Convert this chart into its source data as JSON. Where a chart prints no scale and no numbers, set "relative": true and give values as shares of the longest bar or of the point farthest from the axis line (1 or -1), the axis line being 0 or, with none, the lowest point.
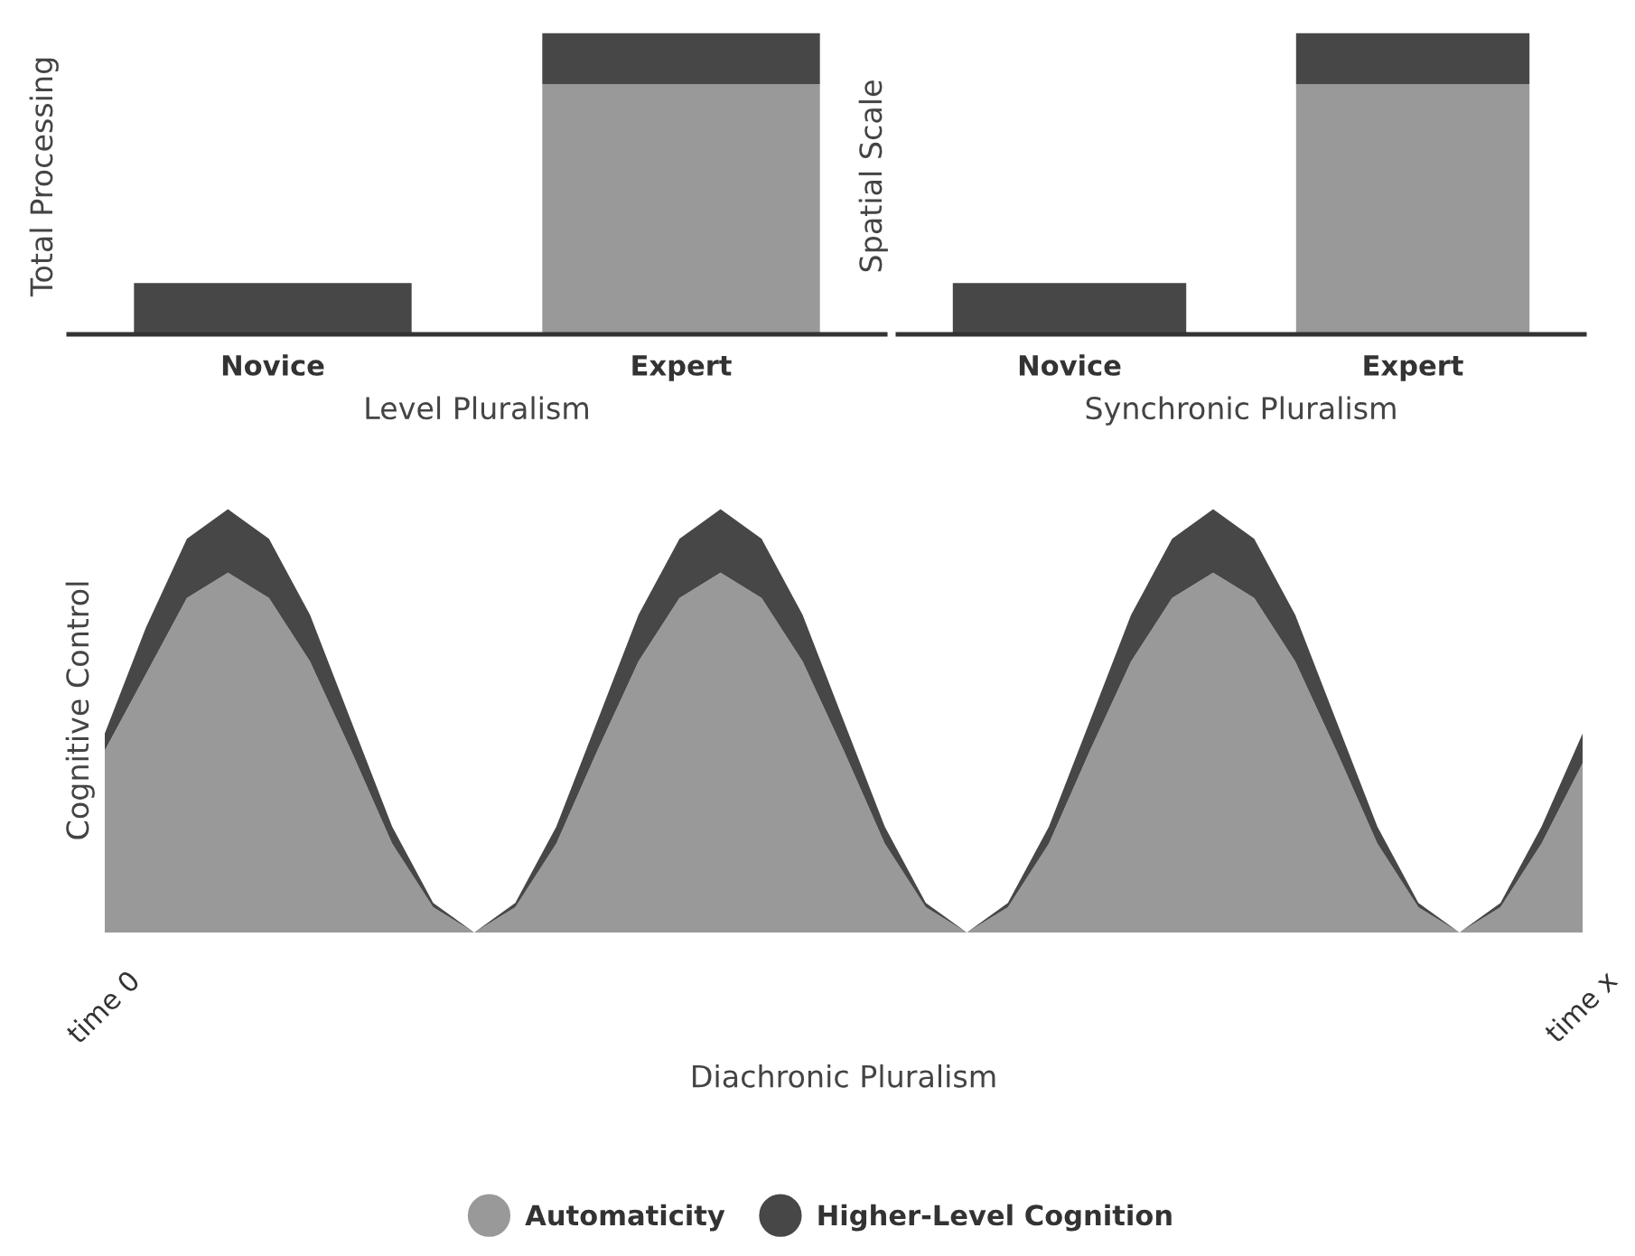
{
  "chart_data": [
    {
      "type": "bar",
      "stacked": true,
      "relative": true,
      "xlabel": "Level Pluralism",
      "ylabel": "Total Processing",
      "legend": "bottom",
      "marker": "circle",
      "categories": [
        "Novice",
        "Expert"
      ],
      "series": [
        {
          "name": "Automaticity",
          "color": "#999999",
          "values": [
            0,
            0.83
          ]
        },
        {
          "name": "Higher-Level Cognition",
          "color": "#474747",
          "values": [
            0.17,
            0.17
          ]
        }
      ]
    },
    {
      "type": "bar",
      "stacked": true,
      "relative": true,
      "xlabel": "Synchronic Pluralism",
      "ylabel": "Spatial Scale",
      "categories": [
        "Novice",
        "Expert"
      ],
      "series": [
        {
          "color": "#999999",
          "values": [
            0,
            0.83
          ]
        },
        {
          "color": "#474747",
          "values": [
            0.17,
            0.17
          ]
        }
      ]
    },
    {
      "type": "area",
      "stacked": true,
      "relative": true,
      "xlabel": "Diachronic Pluralism",
      "ylabel": "Cognitive Control",
      "categories": [
        "time 0",
        null,
        null,
        null,
        null,
        null,
        null,
        null,
        null,
        null,
        null,
        null,
        null,
        null,
        null,
        null,
        null,
        null,
        null,
        null,
        null,
        null,
        null,
        null,
        null,
        null,
        null,
        null,
        null,
        null,
        null,
        null,
        null,
        null,
        null,
        null,
        "time x"
      ],
      "series": [
        {
          "color": "#999999",
          "values": [
            0.43,
            0.61,
            0.79,
            0.85,
            0.79,
            0.64,
            0.43,
            0.21,
            0.06,
            0,
            0.06,
            0.21,
            0.43,
            0.64,
            0.79,
            0.85,
            0.79,
            0.64,
            0.43,
            0.21,
            0.06,
            0,
            0.06,
            0.21,
            0.43,
            0.64,
            0.79,
            0.85,
            0.79,
            0.64,
            0.43,
            0.21,
            0.06,
            0,
            0.06,
            0.21,
            0.4
          ]
        },
        {
          "color": "#474747",
          "values": [
            0.04,
            0.11,
            0.14,
            0.15,
            0.14,
            0.11,
            0.07,
            0.04,
            0.01,
            0,
            0.01,
            0.04,
            0.07,
            0.11,
            0.14,
            0.15,
            0.14,
            0.11,
            0.07,
            0.04,
            0.01,
            0,
            0.01,
            0.04,
            0.07,
            0.11,
            0.14,
            0.15,
            0.14,
            0.11,
            0.07,
            0.04,
            0.01,
            0,
            0.01,
            0.04,
            0.07
          ]
        }
      ]
    }
  ]
}
